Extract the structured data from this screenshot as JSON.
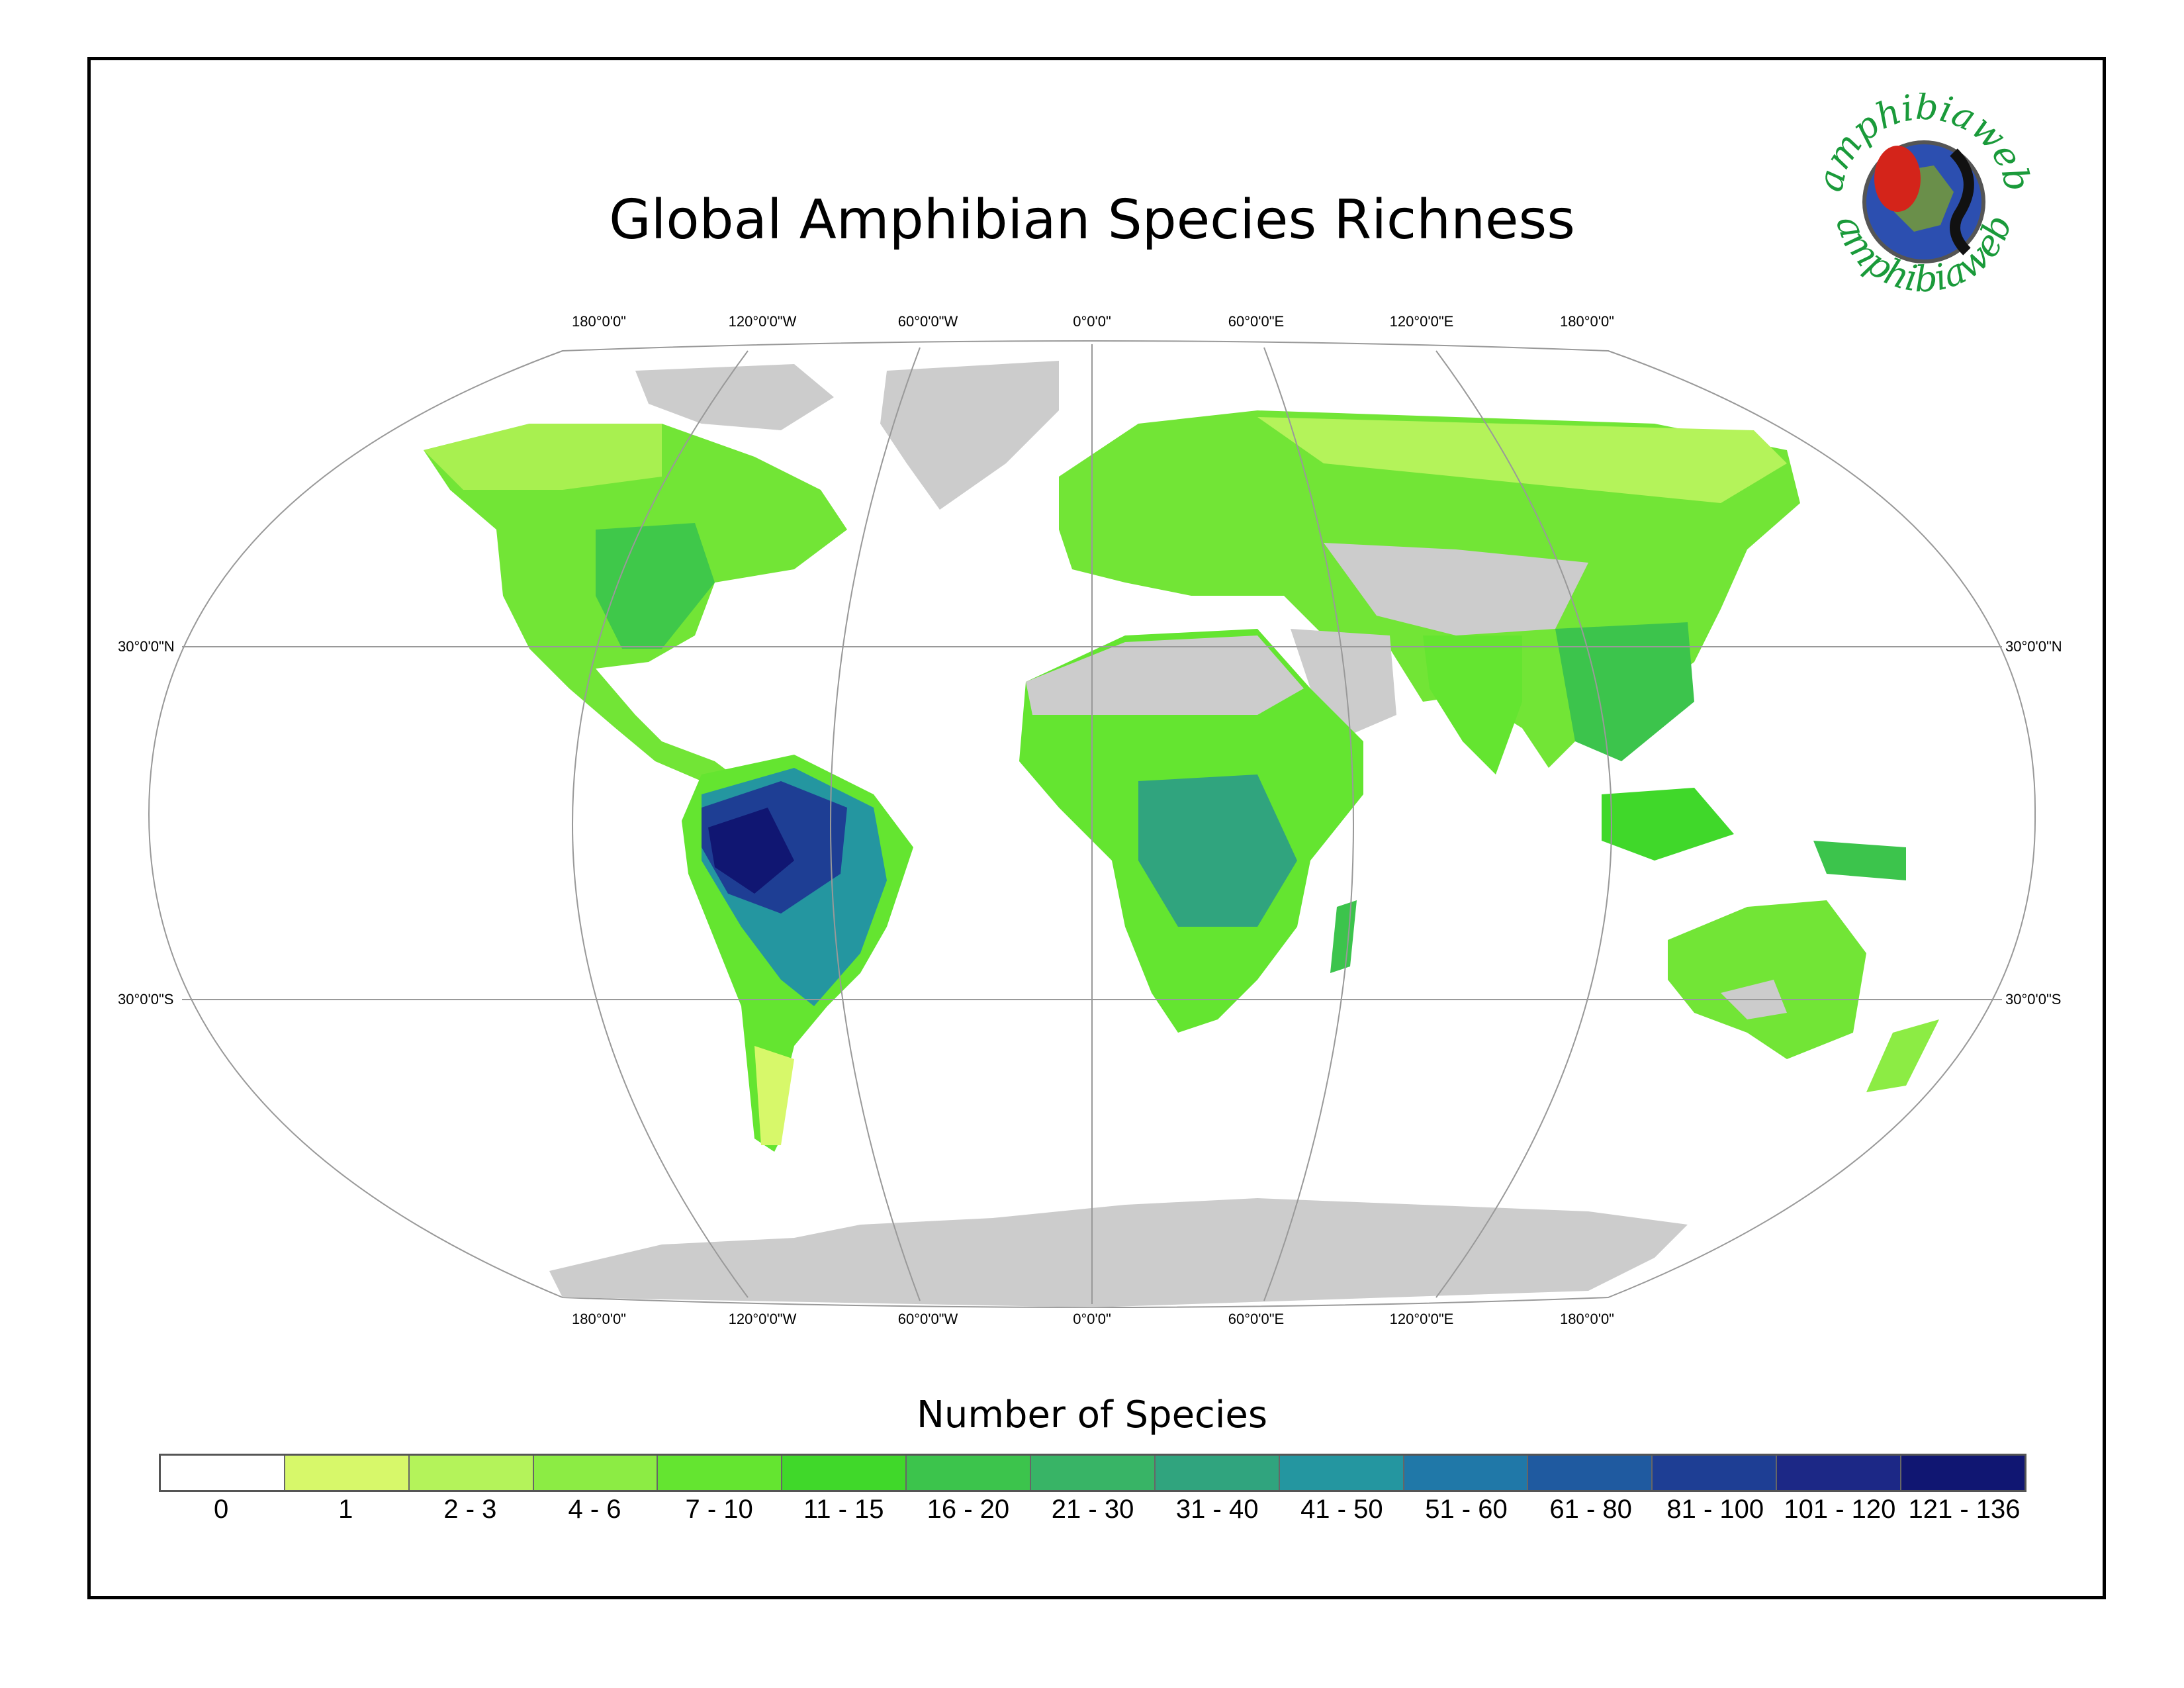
{
  "title": "Global Amphibian Species Richness",
  "graticule": {
    "top_longitudes": [
      "180°0'0\"",
      "120°0'0\"W",
      "60°0'0\"W",
      "0°0'0\"",
      "60°0'0\"E",
      "120°0'0\"E",
      "180°0'0\""
    ],
    "bottom_longitudes": [
      "180°0'0\"",
      "120°0'0\"W",
      "60°0'0\"W",
      "0°0'0\"",
      "60°0'0\"E",
      "120°0'0\"E",
      "180°0'0\""
    ],
    "lat_n_left": "30°0'0\"N",
    "lat_n_right": "30°0'0\"N",
    "lat_s_left": "30°0'0\"S",
    "lat_s_right": "30°0'0\"S"
  },
  "legend": {
    "title": "Number of Species",
    "classes": [
      {
        "label": "0",
        "color": "#ffffff"
      },
      {
        "label": "1",
        "color": "#d7f86a"
      },
      {
        "label": "2 - 3",
        "color": "#b4f35a"
      },
      {
        "label": "4 - 6",
        "color": "#8cec44"
      },
      {
        "label": "7 - 10",
        "color": "#64e530"
      },
      {
        "label": "11 - 15",
        "color": "#40d82a"
      },
      {
        "label": "16 - 20",
        "color": "#3cc44c"
      },
      {
        "label": "21 - 30",
        "color": "#38b466"
      },
      {
        "label": "31 - 40",
        "color": "#30a47e"
      },
      {
        "label": "41 - 50",
        "color": "#2496a0"
      },
      {
        "label": "51 - 60",
        "color": "#2078a8"
      },
      {
        "label": "61 - 80",
        "color": "#1f5aa0"
      },
      {
        "label": "81 - 100",
        "color": "#1e3e94"
      },
      {
        "label": "101 - 120",
        "color": "#1c2886"
      },
      {
        "label": "121 - 136",
        "color": "#101672"
      }
    ]
  },
  "logo": {
    "text_top": "amphibiaweb",
    "text_bottom": "amphibiaweb",
    "color": "#1a9a3a"
  },
  "colors": {
    "no_data_land": "#cccccc",
    "graticule": "#999999"
  }
}
